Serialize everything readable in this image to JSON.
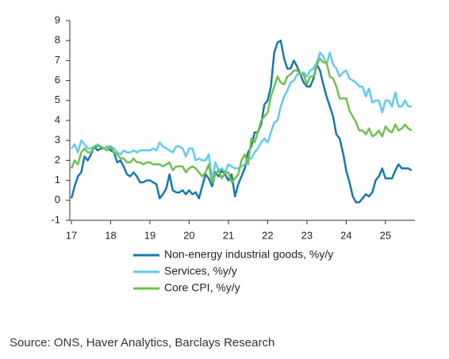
{
  "chart_data": {
    "type": "line",
    "source": "Source: ONS, Haver Analytics, Barclays Research",
    "x": [
      17,
      17.083,
      17.167,
      17.25,
      17.333,
      17.417,
      17.5,
      17.583,
      17.667,
      17.75,
      17.833,
      17.917,
      18,
      18.083,
      18.167,
      18.25,
      18.333,
      18.417,
      18.5,
      18.583,
      18.667,
      18.75,
      18.833,
      18.917,
      19,
      19.083,
      19.167,
      19.25,
      19.333,
      19.417,
      19.5,
      19.583,
      19.667,
      19.75,
      19.833,
      19.917,
      20,
      20.083,
      20.167,
      20.25,
      20.333,
      20.417,
      20.5,
      20.583,
      20.667,
      20.75,
      20.833,
      20.917,
      21,
      21.083,
      21.167,
      21.25,
      21.333,
      21.417,
      21.5,
      21.583,
      21.667,
      21.75,
      21.833,
      21.917,
      22,
      22.083,
      22.167,
      22.25,
      22.333,
      22.417,
      22.5,
      22.583,
      22.667,
      22.75,
      22.833,
      22.917,
      23,
      23.083,
      23.167,
      23.25,
      23.333,
      23.417,
      23.5,
      23.583,
      23.667,
      23.75,
      23.833,
      23.917,
      24,
      24.083,
      24.167,
      24.25,
      24.333,
      24.417,
      24.5,
      24.583,
      24.667,
      24.75,
      24.833,
      24.917,
      25,
      25.083,
      25.167,
      25.25,
      25.333,
      25.417,
      25.5,
      25.583,
      25.667
    ],
    "series": [
      {
        "name": "Non-energy industrial goods, %y/y",
        "color": "#1779a8",
        "values": [
          0.1,
          0.7,
          1.2,
          1.4,
          2.2,
          2.0,
          2.3,
          2.7,
          2.5,
          2.6,
          2.6,
          2.7,
          2.5,
          2.4,
          1.9,
          2.0,
          1.7,
          1.3,
          1.2,
          1.4,
          1.2,
          0.9,
          0.9,
          1.0,
          1.0,
          0.9,
          0.8,
          0.1,
          0.3,
          0.6,
          1.3,
          0.5,
          0.4,
          0.4,
          0.5,
          0.3,
          0.5,
          0.3,
          0.4,
          0.1,
          0.7,
          1.3,
          1.1,
          0.7,
          1.4,
          1.2,
          1.5,
          1.3,
          1.0,
          1.3,
          0.2,
          0.8,
          1.2,
          1.6,
          2.4,
          2.7,
          3.4,
          3.4,
          3.8,
          4.8,
          5.0,
          5.7,
          7.4,
          7.9,
          8.0,
          7.1,
          6.6,
          6.6,
          7.0,
          6.7,
          6.3,
          5.9,
          5.7,
          5.7,
          6.1,
          6.8,
          6.5,
          5.8,
          5.2,
          4.7,
          4.2,
          3.3,
          3.1,
          2.4,
          1.5,
          0.9,
          0.2,
          -0.1,
          -0.1,
          0.1,
          0.3,
          0.2,
          0.4,
          1.0,
          1.2,
          1.6,
          1.1,
          1.1,
          1.1,
          1.5,
          1.8,
          1.6,
          1.6,
          1.6,
          1.5
        ]
      },
      {
        "name": "Services, %y/y",
        "color": "#62c9f0",
        "values": [
          2.6,
          2.8,
          2.4,
          3.0,
          2.8,
          2.6,
          2.6,
          2.7,
          2.8,
          2.7,
          2.6,
          2.7,
          2.7,
          2.6,
          2.4,
          2.3,
          2.5,
          2.4,
          2.4,
          2.5,
          2.4,
          2.5,
          2.5,
          2.5,
          2.5,
          2.6,
          2.5,
          2.9,
          2.7,
          2.6,
          2.5,
          2.4,
          2.7,
          2.7,
          2.6,
          2.2,
          2.6,
          2.6,
          2.0,
          2.1,
          2.0,
          2.0,
          2.3,
          1.0,
          1.9,
          1.5,
          1.6,
          1.4,
          1.8,
          1.7,
          1.6,
          1.6,
          1.7,
          1.8,
          2.1,
          2.1,
          2.4,
          2.6,
          2.9,
          3.1,
          2.9,
          3.4,
          3.9,
          4.0,
          4.7,
          5.2,
          5.5,
          5.9,
          6.0,
          6.3,
          6.3,
          6.4,
          6.2,
          6.5,
          6.6,
          6.9,
          7.4,
          7.2,
          6.8,
          7.4,
          6.8,
          6.6,
          6.2,
          6.4,
          6.5,
          6.1,
          6.0,
          5.9,
          5.7,
          5.7,
          5.2,
          5.6,
          4.9,
          5.0,
          5.0,
          4.4,
          5.0,
          5.0,
          4.7,
          5.4,
          4.7,
          4.7,
          5.0,
          4.7,
          4.7
        ]
      },
      {
        "name": "Core CPI, %y/y",
        "color": "#72bf4f",
        "values": [
          1.6,
          2.0,
          1.8,
          2.4,
          2.6,
          2.4,
          2.4,
          2.7,
          2.7,
          2.7,
          2.6,
          2.5,
          2.7,
          2.4,
          2.3,
          2.1,
          2.1,
          1.9,
          1.9,
          2.1,
          1.9,
          1.9,
          1.8,
          1.9,
          1.9,
          1.8,
          1.8,
          1.8,
          1.7,
          1.8,
          1.9,
          1.5,
          1.7,
          1.7,
          1.7,
          1.4,
          1.6,
          1.7,
          1.6,
          1.4,
          1.2,
          1.4,
          1.8,
          0.9,
          1.3,
          1.5,
          1.1,
          1.4,
          1.4,
          0.9,
          1.1,
          1.3,
          2.0,
          2.3,
          1.8,
          3.1,
          2.9,
          3.4,
          4.0,
          4.2,
          4.4,
          5.2,
          5.7,
          6.2,
          5.9,
          5.8,
          6.2,
          6.3,
          6.5,
          6.5,
          6.3,
          6.3,
          5.8,
          6.2,
          6.2,
          6.8,
          7.1,
          6.9,
          6.9,
          6.2,
          6.1,
          5.7,
          5.1,
          5.1,
          5.1,
          4.5,
          4.2,
          3.9,
          3.5,
          3.5,
          3.3,
          3.6,
          3.2,
          3.3,
          3.5,
          3.2,
          3.7,
          3.5,
          3.4,
          3.8,
          3.5,
          3.6,
          3.8,
          3.6,
          3.5
        ]
      }
    ],
    "xlim": [
      16.96,
      25.75
    ],
    "xticks": [
      17,
      18,
      19,
      20,
      21,
      22,
      23,
      24,
      25
    ],
    "ylim": [
      -1,
      9
    ],
    "yticks": [
      -1,
      0,
      1,
      2,
      3,
      4,
      5,
      6,
      7,
      8,
      9
    ]
  }
}
